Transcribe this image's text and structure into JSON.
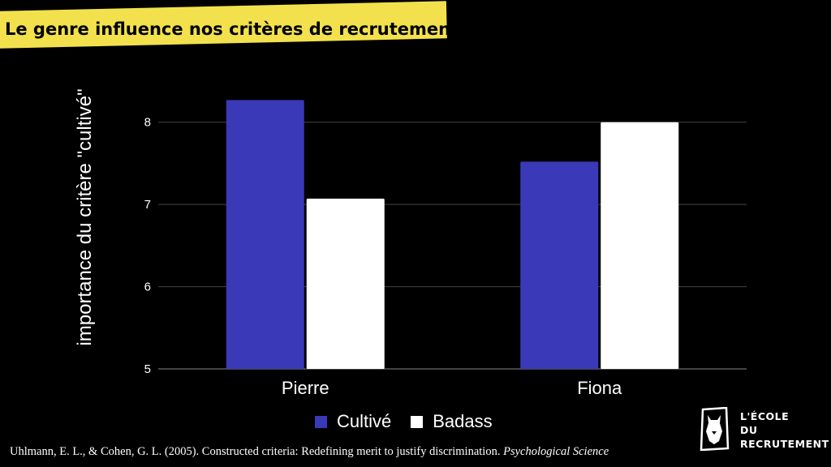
{
  "slide": {
    "title": "Le genre influence nos critères de recrutement",
    "citation_plain": "Uhlmann, E. L., & Cohen, G. L. (2005). Constructed criteria: Redefining merit to justify discrimination. ",
    "citation_journal": "Psychological Science"
  },
  "logo": {
    "line1": "L'ÉCOLE",
    "line2": "DU",
    "line3": "RECRUTEMENT"
  },
  "colors": {
    "background": "#000000",
    "title_band": "#f2e14c",
    "cultive": "#3a39b8",
    "badass": "#ffffff",
    "gridline": "#444444",
    "text": "#ffffff"
  },
  "chart_data": {
    "type": "bar",
    "title": "",
    "ylabel": "importance du critère \"cultivé\"",
    "xlabel": "",
    "categories": [
      "Pierre",
      "Fiona"
    ],
    "series": [
      {
        "name": "Cultivé",
        "values": [
          8.27,
          7.52
        ],
        "color": "#3a39b8"
      },
      {
        "name": "Badass",
        "values": [
          7.07,
          8.0
        ],
        "color": "#ffffff"
      }
    ],
    "ylim": [
      5,
      8.5
    ],
    "yticks": [
      "5",
      "6",
      "7",
      "8"
    ],
    "grid": true,
    "legend": "bottom"
  }
}
